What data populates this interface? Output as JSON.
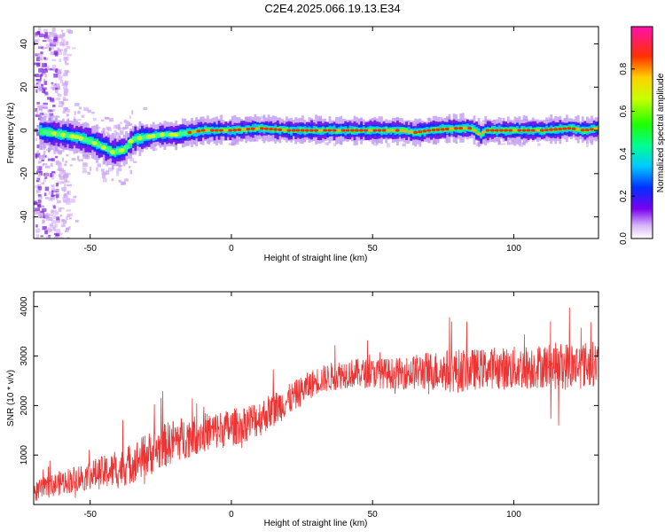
{
  "title": "C2E4.2025.066.19.13.E34",
  "chart_data": [
    {
      "type": "heatmap",
      "title": "C2E4.2025.066.19.13.E34",
      "xlabel": "Height of straight line (km)",
      "ylabel": "Frequency (Hz)",
      "xlim": [
        -70,
        130
      ],
      "ylim": [
        -50,
        48
      ],
      "xticks": [
        -50,
        0,
        50,
        100
      ],
      "yticks": [
        -40,
        -20,
        0,
        20,
        40
      ],
      "ridge": {
        "x": [
          -70,
          -65,
          -60,
          -55,
          -50,
          -45,
          -42,
          -38,
          -35,
          -30,
          -25,
          -20,
          -15,
          -10,
          0,
          10,
          20,
          30,
          40,
          50,
          60,
          65,
          70,
          80,
          85,
          88,
          90,
          95,
          100,
          110,
          120,
          125,
          130
        ],
        "y": [
          0,
          -1,
          -2,
          -3,
          -5,
          -8,
          -10,
          -9,
          -4,
          -3,
          -2,
          -2,
          -1,
          0,
          0,
          1,
          0,
          0,
          0,
          0,
          0,
          -1,
          0,
          1,
          1,
          -2,
          0,
          0,
          0,
          0,
          1,
          0,
          1
        ]
      },
      "colorbar": {
        "label": "Normalized spectral amplitude",
        "ticks": [
          "0.0",
          "0.2",
          "0.4",
          "0.6",
          "0.8"
        ],
        "range": [
          0,
          1
        ]
      }
    },
    {
      "type": "line",
      "xlabel": "Height of straight line (km)",
      "ylabel": "SNR (10 * v/v)",
      "xlim": [
        -70,
        130
      ],
      "ylim": [
        0,
        4300
      ],
      "xticks": [
        -50,
        0,
        50,
        100
      ],
      "yticks": [
        1000,
        2000,
        3000,
        4000
      ],
      "series": [
        {
          "color": "#ee3333",
          "x": [
            -70,
            -60,
            -50,
            -40,
            -30,
            -20,
            -10,
            0,
            10,
            20,
            30,
            40,
            50,
            60,
            70,
            80,
            90,
            100,
            110,
            120,
            130
          ],
          "y": [
            250,
            450,
            600,
            700,
            1000,
            1300,
            1450,
            1550,
            1750,
            2100,
            2500,
            2650,
            2650,
            2650,
            2700,
            2700,
            2750,
            2750,
            2800,
            2800,
            2850
          ],
          "spread": [
            200,
            250,
            300,
            380,
            450,
            450,
            400,
            380,
            380,
            320,
            280,
            300,
            300,
            320,
            400,
            450,
            400,
            450,
            450,
            500,
            450
          ]
        }
      ]
    }
  ]
}
